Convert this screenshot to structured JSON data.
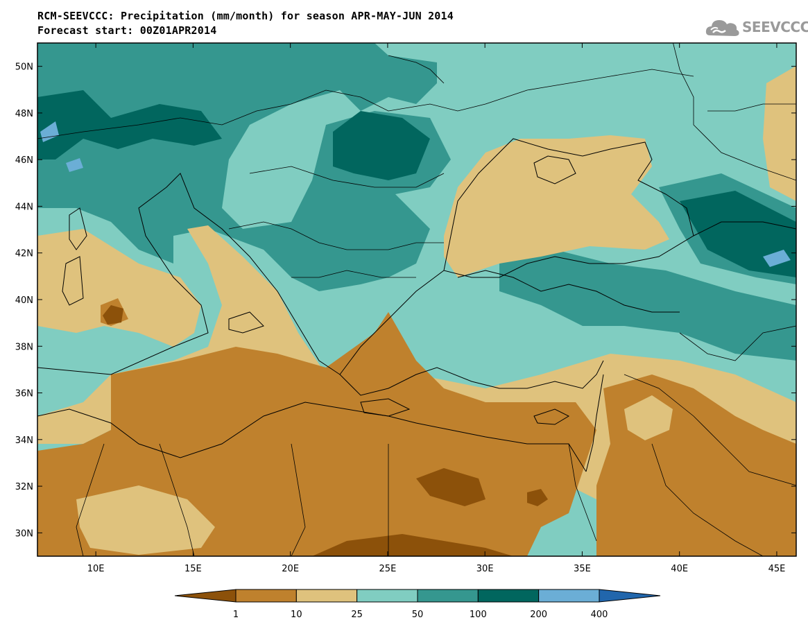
{
  "title_line1": "RCM-SEEVCCC: Precipitation (mm/month) for season APR-MAY-JUN 2014",
  "title_line2": "Forecast start: 00Z01APR2014",
  "logo_text": "SEEVCCC",
  "logo_icon": "cloud-icon",
  "map": {
    "lon_range": [
      7,
      46
    ],
    "lat_range": [
      29,
      51
    ],
    "lat_ticks": [
      {
        "value": 50,
        "label": "50N"
      },
      {
        "value": 48,
        "label": "48N"
      },
      {
        "value": 46,
        "label": "46N"
      },
      {
        "value": 44,
        "label": "44N"
      },
      {
        "value": 42,
        "label": "42N"
      },
      {
        "value": 40,
        "label": "40N"
      },
      {
        "value": 38,
        "label": "38N"
      },
      {
        "value": 36,
        "label": "36N"
      },
      {
        "value": 34,
        "label": "34N"
      },
      {
        "value": 32,
        "label": "32N"
      },
      {
        "value": 30,
        "label": "30N"
      }
    ],
    "lon_ticks": [
      {
        "value": 10,
        "label": "10E"
      },
      {
        "value": 15,
        "label": "15E"
      },
      {
        "value": 20,
        "label": "20E"
      },
      {
        "value": 25,
        "label": "25E"
      },
      {
        "value": 30,
        "label": "30E"
      },
      {
        "value": 35,
        "label": "35E"
      },
      {
        "value": 40,
        "label": "40E"
      },
      {
        "value": 45,
        "label": "45E"
      }
    ]
  },
  "colorbar": {
    "colors": [
      "#8c510a",
      "#bf812d",
      "#dfc27d",
      "#80cdc1",
      "#35978f",
      "#01665e",
      "#6baed6",
      "#2166ac"
    ],
    "labels": [
      "1",
      "10",
      "25",
      "50",
      "100",
      "200",
      "400"
    ]
  }
}
